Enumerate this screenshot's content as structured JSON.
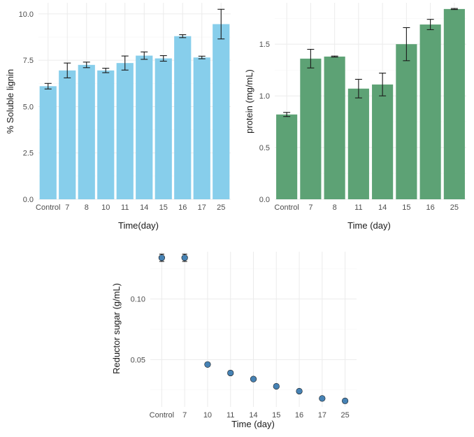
{
  "chart_data": [
    {
      "id": "lignin",
      "type": "bar",
      "categories": [
        "Control",
        "7",
        "8",
        "10",
        "11",
        "14",
        "15",
        "16",
        "17",
        "25"
      ],
      "values": [
        6.1,
        6.95,
        7.25,
        6.95,
        7.35,
        7.75,
        7.6,
        8.8,
        7.65,
        9.45
      ],
      "errors": [
        0.15,
        0.4,
        0.15,
        0.12,
        0.38,
        0.2,
        0.15,
        0.08,
        0.07,
        0.8
      ],
      "xlabel": "Time(day)",
      "ylabel": "% Soluble lignin",
      "ylim": [
        0,
        10.6
      ],
      "yticks": [
        0,
        2.5,
        5,
        7.5,
        10
      ],
      "ytick_labels": [
        "0.0",
        "2.5",
        "5.0",
        "7.5",
        "10.0"
      ],
      "color": "#87CEEB"
    },
    {
      "id": "protein",
      "type": "bar",
      "categories": [
        "Control",
        "7",
        "8",
        "11",
        "14",
        "15",
        "16",
        "25"
      ],
      "values": [
        0.82,
        1.36,
        1.38,
        1.07,
        1.11,
        1.5,
        1.69,
        1.84
      ],
      "errors": [
        0.02,
        0.09,
        0.005,
        0.09,
        0.11,
        0.16,
        0.05,
        0.005
      ],
      "xlabel": "Time (day)",
      "ylabel": "protein (mg/mL)",
      "ylim": [
        0,
        1.9
      ],
      "yticks": [
        0,
        0.5,
        1,
        1.5
      ],
      "ytick_labels": [
        "0.0",
        "0.5",
        "1.0",
        "1.5"
      ],
      "color": "#5DA275"
    },
    {
      "id": "sugar",
      "type": "scatter",
      "categories": [
        "Control",
        "7",
        "10",
        "11",
        "14",
        "15",
        "16",
        "17",
        "25"
      ],
      "values": [
        0.134,
        0.134,
        0.046,
        0.039,
        0.034,
        0.028,
        0.024,
        0.018,
        0.016
      ],
      "errors": [
        0.003,
        0.003,
        0.001,
        0.001,
        0.001,
        0.001,
        0.001,
        0.001,
        0.001
      ],
      "xlabel": "Time (day)",
      "ylabel": "Reductor sugar (g/mL)",
      "ylim": [
        0.011,
        0.139
      ],
      "yticks": [
        0.05,
        0.1
      ],
      "ytick_labels": [
        "0.05",
        "0.10"
      ],
      "color": "#4682B4"
    }
  ]
}
